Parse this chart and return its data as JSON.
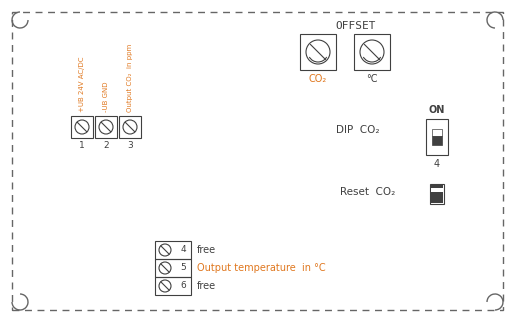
{
  "bg_color": "#ffffff",
  "border_color": "#666666",
  "orange_color": "#e07820",
  "dark_color": "#404040",
  "connector_labels": [
    "+UB 24V AC/DC",
    "-UB GND",
    "Output CO₂  in ppm"
  ],
  "connector_label_colors": [
    "#e07820",
    "#e07820",
    "#e07820"
  ],
  "connector_numbers": [
    "1",
    "2",
    "3"
  ],
  "output_labels": [
    "free",
    "Output temperature  in °C",
    "free"
  ],
  "output_label_colors": [
    "#404040",
    "#e07820",
    "#404040"
  ],
  "output_numbers": [
    "4",
    "5",
    "6"
  ],
  "offset_label": "OFFSET",
  "offset_co2_label": "CO₂",
  "offset_c_label": "°C",
  "dip_label": "DIP  CO₂",
  "reset_label": "Reset  CO₂",
  "on_label": "ON",
  "four_label": "4"
}
